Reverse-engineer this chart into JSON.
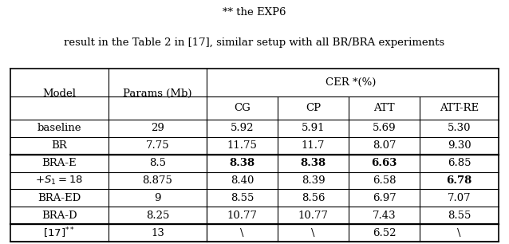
{
  "title_line1": "** the EXP6",
  "title_line2": "result in the Table 2 in [17], similar setup with all BR/BRA experiments",
  "cer_header": "CER *(%) ",
  "rows": [
    {
      "model": "baseline",
      "params": "29",
      "cg": "5.92",
      "cp": "5.91",
      "att": "5.69",
      "att_re": "5.30",
      "bold": []
    },
    {
      "model": "BR",
      "params": "7.75",
      "cg": "11.75",
      "cp": "11.7",
      "att": "8.07",
      "att_re": "9.30",
      "bold": []
    },
    {
      "model": "BRA-E",
      "params": "8.5",
      "cg": "8.38",
      "cp": "8.38",
      "att": "6.63",
      "att_re": "6.85",
      "bold": [
        "cg",
        "cp",
        "att"
      ]
    },
    {
      "model": "+ S_1 = 18",
      "params": "8.875",
      "cg": "8.40",
      "cp": "8.39",
      "att": "6.58",
      "att_re": "6.78",
      "bold": [
        "att_re"
      ]
    },
    {
      "model": "BRA-ED",
      "params": "9",
      "cg": "8.55",
      "cp": "8.56",
      "att": "6.97",
      "att_re": "7.07",
      "bold": []
    },
    {
      "model": "BRA-D",
      "params": "8.25",
      "cg": "10.77",
      "cp": "10.77",
      "att": "7.43",
      "att_re": "8.55",
      "bold": []
    },
    {
      "model": "[17]**",
      "params": "13",
      "cg": "\\",
      "cp": "\\",
      "att": "6.52",
      "att_re": "\\",
      "bold": []
    }
  ],
  "font_size": 9.5,
  "figsize": [
    6.38,
    3.06
  ]
}
